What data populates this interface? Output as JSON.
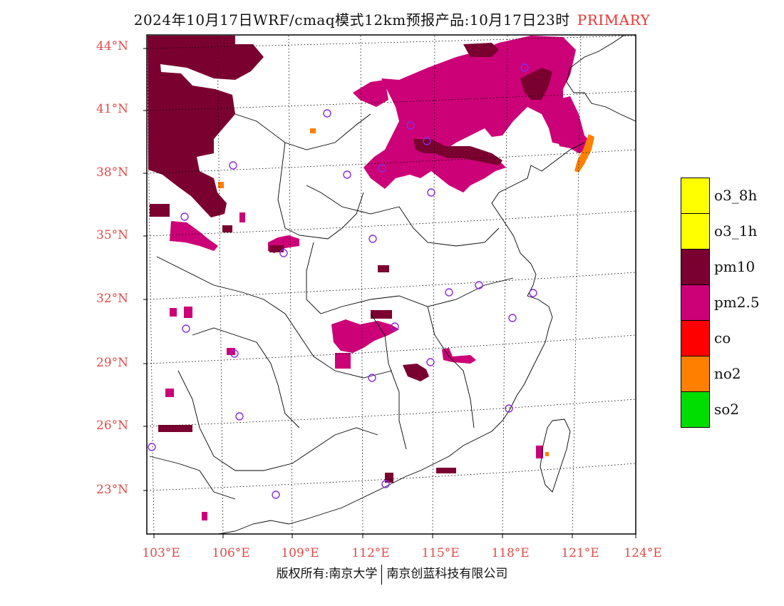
{
  "title": {
    "main": "2024年10月17日WRF/cmaq模式12km预报产品:10月17日23时",
    "tag": "PRIMARY",
    "tag_color": "#e33333"
  },
  "lat_labels": [
    "44°N",
    "41°N",
    "38°N",
    "35°N",
    "32°N",
    "29°N",
    "26°N",
    "23°N"
  ],
  "lon_labels": [
    "103°E",
    "106°E",
    "109°E",
    "112°E",
    "115°E",
    "118°E",
    "121°E",
    "124°E"
  ],
  "legend": [
    {
      "label": "o3_8h",
      "color": "#ffff00"
    },
    {
      "label": "o3_1h",
      "color": "#ffff00"
    },
    {
      "label": "pm10",
      "color": "#7a0030"
    },
    {
      "label": "pm2.5",
      "color": "#cc0077"
    },
    {
      "label": "co",
      "color": "#ff0000"
    },
    {
      "label": "no2",
      "color": "#ff7f00"
    },
    {
      "label": "so2",
      "color": "#00dd00"
    }
  ],
  "footer": {
    "left": "版权所有:南京大学",
    "right": "南京创蓝科技有限公司"
  },
  "colors": {
    "label_red": "#e24a4a",
    "pm10": "#7a0030",
    "pm25": "#cc0077",
    "no2": "#ff7f00",
    "station": "#8a2be2"
  }
}
